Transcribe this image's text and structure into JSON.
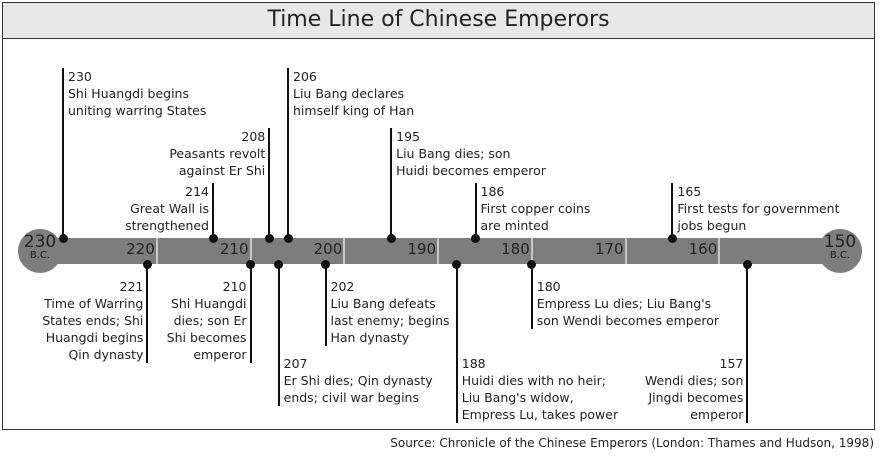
{
  "title": "Time Line of Chinese Emperors",
  "start": {
    "year": "230",
    "era": "B.C."
  },
  "end": {
    "year": "150",
    "era": "B.C."
  },
  "ticks": [
    "220",
    "210",
    "200",
    "190",
    "180",
    "170",
    "160"
  ],
  "events_top": [
    {
      "year": 230,
      "label": "230",
      "text": [
        "Shi Huangdi begins",
        "uniting warring States"
      ],
      "align": "right",
      "row": 0
    },
    {
      "year": 214,
      "label": "214",
      "text": [
        "Great Wall is",
        "strengthened"
      ],
      "align": "left",
      "row": 2
    },
    {
      "year": 208,
      "label": "208",
      "text": [
        "Peasants revolt",
        "against Er Shi"
      ],
      "align": "left",
      "row": 1
    },
    {
      "year": 206,
      "label": "206",
      "text": [
        "Liu Bang declares",
        "himself king of Han"
      ],
      "align": "right",
      "row": 0
    },
    {
      "year": 195,
      "label": "195",
      "text": [
        "Liu Bang dies; son",
        "Huidi becomes emperor"
      ],
      "align": "right",
      "row": 1
    },
    {
      "year": 186,
      "label": "186",
      "text": [
        "First copper coins",
        "are minted"
      ],
      "align": "right",
      "row": 2
    },
    {
      "year": 165,
      "label": "165",
      "text": [
        "First tests for government",
        "jobs begun"
      ],
      "align": "right",
      "row": 2
    }
  ],
  "events_bottom": [
    {
      "year": 221,
      "label": "221",
      "text": [
        "Time of Warring",
        "States ends; Shi",
        "Huangdi begins",
        "Qin dynasty"
      ],
      "align": "left",
      "row": 0
    },
    {
      "year": 210,
      "label": "210",
      "text": [
        "Shi Huangdi",
        "dies; son Er",
        "Shi becomes",
        "emperor"
      ],
      "align": "left",
      "row": 0
    },
    {
      "year": 207,
      "label": "207",
      "text": [
        "Er Shi dies; Qin dynasty",
        "ends; civil war begins"
      ],
      "align": "right",
      "row": 1
    },
    {
      "year": 202,
      "label": "202",
      "text": [
        "Liu Bang defeats",
        "last enemy; begins",
        "Han dynasty"
      ],
      "align": "right",
      "row": 0
    },
    {
      "year": 188,
      "label": "188",
      "text": [
        "Huidi dies with no heir;",
        "Liu Bang's widow,",
        "Empress Lu, takes power"
      ],
      "align": "right",
      "row": 1
    },
    {
      "year": 180,
      "label": "180",
      "text": [
        "Empress Lu dies; Liu Bang's",
        "son Wendi becomes emperor"
      ],
      "align": "right",
      "row": 0
    },
    {
      "year": 157,
      "label": "157",
      "text": [
        "Wendi dies; son",
        "Jingdi becomes",
        "emperor"
      ],
      "align": "left",
      "row": 1
    }
  ],
  "source": "Source: Chronicle of the Chinese Emperors (London: Thames and Hudson, 1998)"
}
